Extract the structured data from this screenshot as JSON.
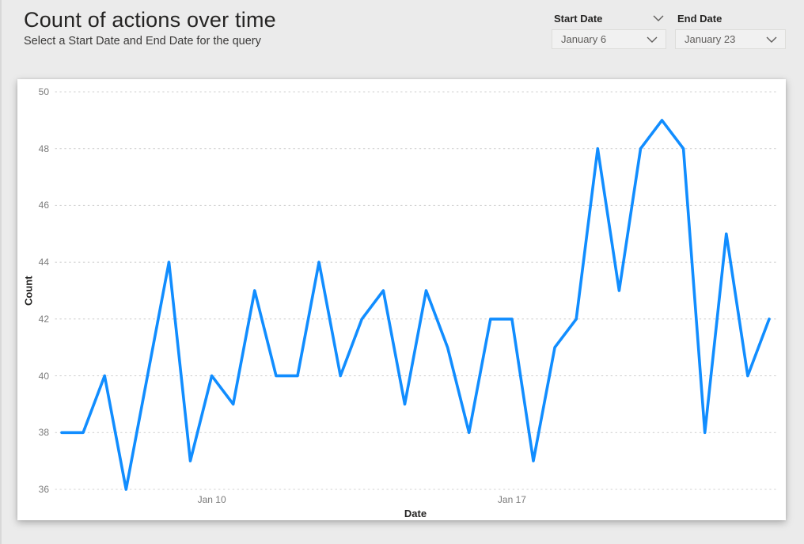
{
  "header": {
    "title": "Count of actions over time",
    "subtitle": "Select a Start Date and End Date for the query"
  },
  "slicers": {
    "start": {
      "label": "Start Date",
      "value": "January 6"
    },
    "end": {
      "label": "End Date",
      "value": "January 23"
    }
  },
  "colors": {
    "line": "#118DFF",
    "page_background": "#ebebeb",
    "card_background": "#ffffff",
    "grid": "#d2d2d2",
    "tick_text": "#7a7a7a",
    "axis_title_text": "#252423"
  },
  "chart_data": {
    "type": "line",
    "title": "Count of actions over time",
    "xlabel": "Date",
    "ylabel": "Count",
    "ylim": [
      36,
      50
    ],
    "y_ticks": [
      36,
      38,
      40,
      42,
      44,
      46,
      48,
      50
    ],
    "x_ticks": [
      {
        "index": 7,
        "label": "Jan 10"
      },
      {
        "index": 21,
        "label": "Jan 17"
      }
    ],
    "x_range_labels": [
      "January 6",
      "January 23"
    ],
    "points_per_day": 2,
    "grid": "dotted-horizontal",
    "legend": "none",
    "series": [
      {
        "name": "Count",
        "color": "#118DFF",
        "values": [
          38,
          38,
          40,
          36,
          40,
          44,
          37,
          40,
          39,
          43,
          40,
          40,
          44,
          40,
          42,
          43,
          39,
          43,
          41,
          38,
          42,
          42,
          37,
          41,
          42,
          48,
          43,
          48,
          49,
          48,
          38,
          45,
          40,
          42
        ]
      }
    ]
  }
}
